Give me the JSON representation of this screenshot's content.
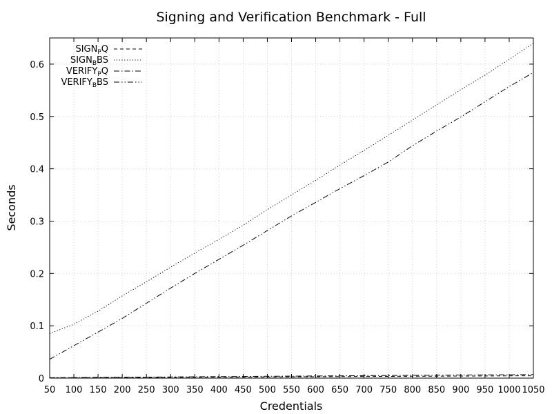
{
  "chart_data": {
    "type": "line",
    "title": "Signing and Verification Benchmark - Full",
    "xlabel": "Credentials",
    "ylabel": "Seconds",
    "xlim": [
      50,
      1050
    ],
    "ylim": [
      0,
      0.65
    ],
    "x_ticks": [
      50,
      100,
      150,
      200,
      250,
      300,
      350,
      400,
      450,
      500,
      550,
      600,
      650,
      700,
      750,
      800,
      850,
      900,
      950,
      1000,
      1050
    ],
    "y_ticks": [
      0,
      0.1,
      0.2,
      0.3,
      0.4,
      0.5,
      0.6
    ],
    "y_tick_labels": [
      "0",
      "0.1",
      "0.2",
      "0.3",
      "0.4",
      "0.5",
      "0.6"
    ],
    "grid": true,
    "legend_position": "top-left",
    "x": [
      50,
      100,
      150,
      200,
      250,
      300,
      350,
      400,
      450,
      500,
      550,
      600,
      650,
      700,
      750,
      800,
      850,
      900,
      950,
      1000,
      1050
    ],
    "series": [
      {
        "name": "SIGN_PQ",
        "label_main": "SIGN",
        "label_sub": "P",
        "label_rest": "Q",
        "dash": "dashed",
        "values": [
          0.0005,
          0.0007,
          0.0009,
          0.0011,
          0.0013,
          0.0015,
          0.0017,
          0.0019,
          0.0021,
          0.0023,
          0.0025,
          0.0027,
          0.0029,
          0.0031,
          0.0033,
          0.0035,
          0.0037,
          0.0039,
          0.0041,
          0.0043,
          0.0045
        ]
      },
      {
        "name": "SIGN_BBS",
        "label_main": "SIGN",
        "label_sub": "B",
        "label_rest": "BS",
        "dash": "dotted",
        "values": [
          0.085,
          0.103,
          0.128,
          0.157,
          0.184,
          0.212,
          0.239,
          0.265,
          0.292,
          0.322,
          0.35,
          0.378,
          0.407,
          0.435,
          0.464,
          0.493,
          0.522,
          0.551,
          0.579,
          0.609,
          0.64
        ]
      },
      {
        "name": "VERIFY_PQ",
        "label_main": "VERIFY",
        "label_sub": "P",
        "label_rest": "Q",
        "dash": "dashdot",
        "values": [
          0.0008,
          0.0011,
          0.0014,
          0.0017,
          0.002,
          0.0023,
          0.0026,
          0.0029,
          0.0032,
          0.0035,
          0.0038,
          0.0041,
          0.0044,
          0.0047,
          0.005,
          0.0053,
          0.0056,
          0.0059,
          0.0062,
          0.0065,
          0.0068
        ]
      },
      {
        "name": "VERIFY_BBS",
        "label_main": "VERIFY",
        "label_sub": "B",
        "label_rest": "BS",
        "dash": "dashdotdot",
        "values": [
          0.036,
          0.062,
          0.088,
          0.114,
          0.143,
          0.172,
          0.2,
          0.227,
          0.254,
          0.282,
          0.31,
          0.336,
          0.362,
          0.387,
          0.413,
          0.444,
          0.472,
          0.499,
          0.528,
          0.557,
          0.584
        ]
      }
    ]
  },
  "colors": {
    "line": "#000000",
    "grid": "#cfcfcf",
    "background": "#ffffff"
  }
}
